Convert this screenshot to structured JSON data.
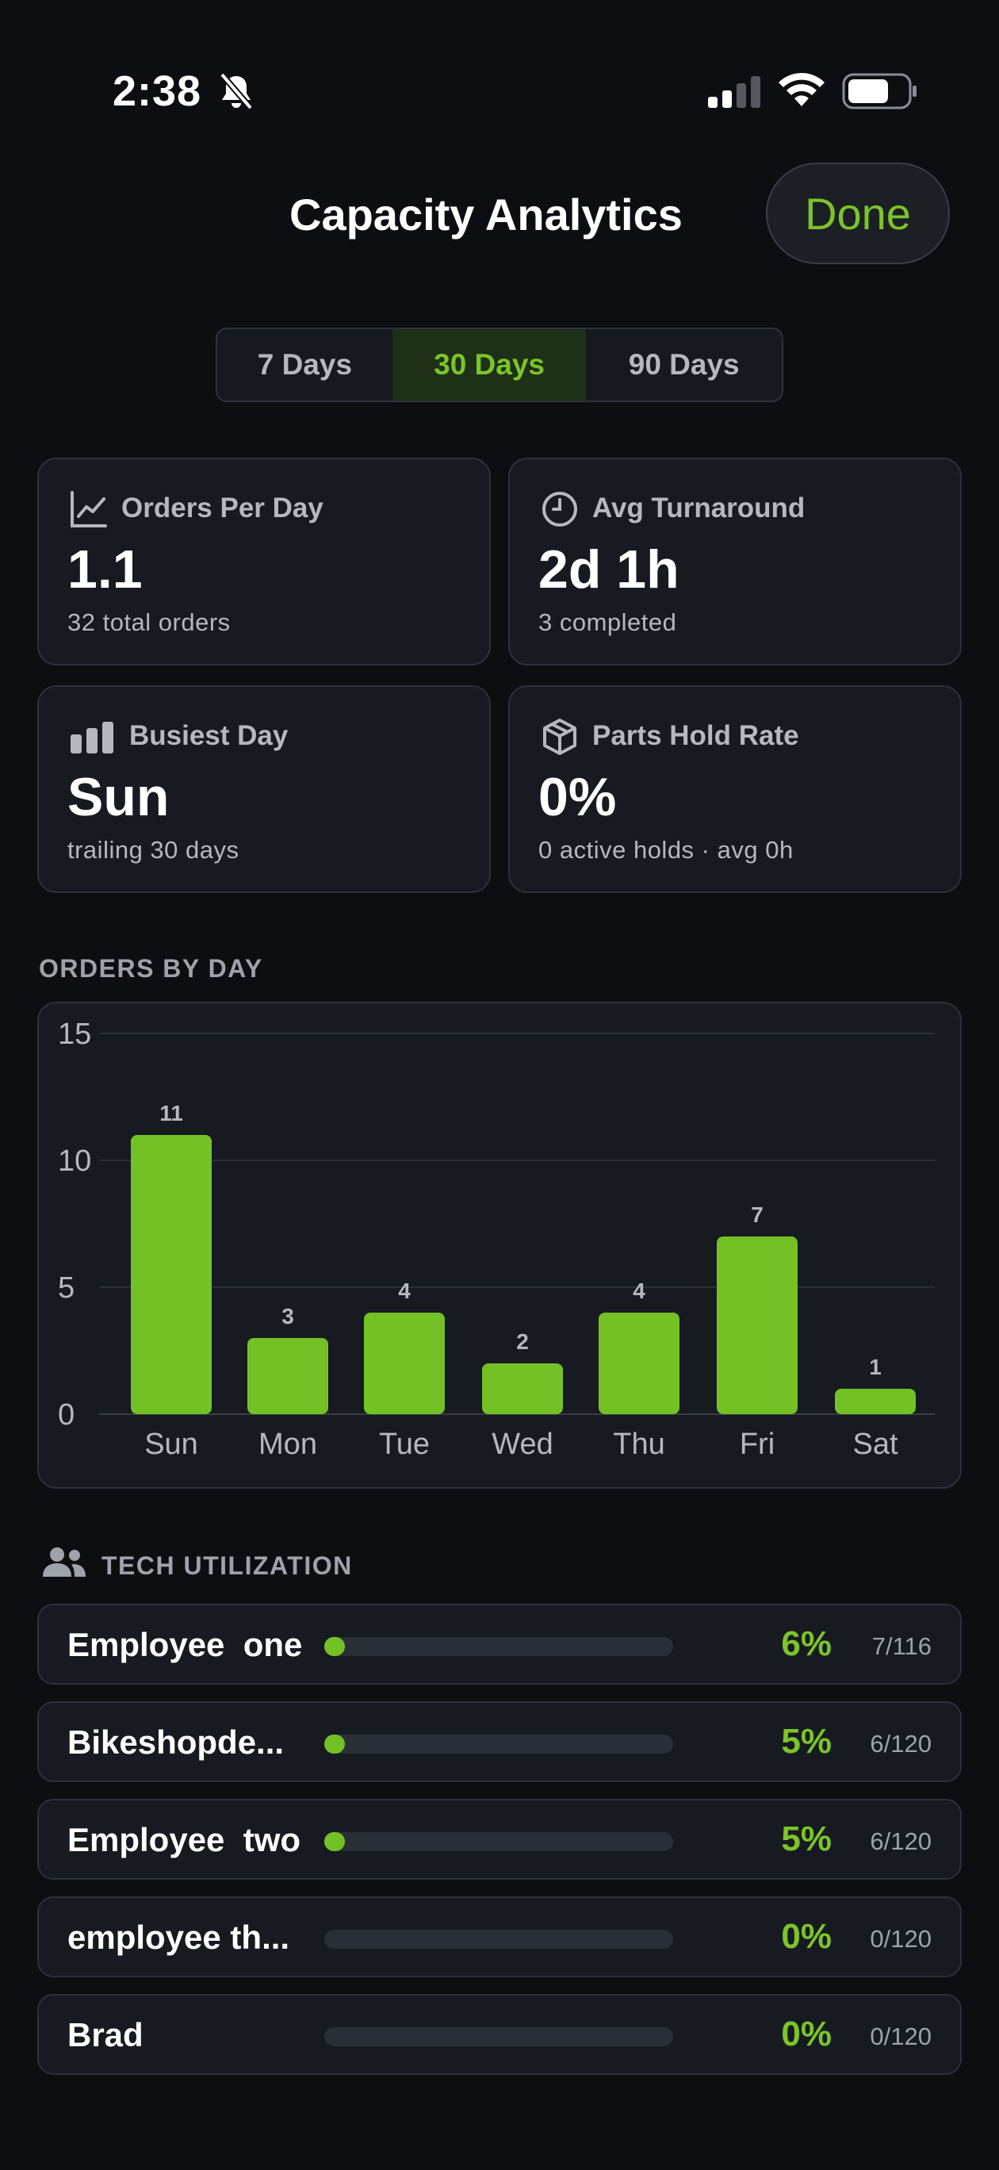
{
  "status_bar": {
    "time": "2:38"
  },
  "header": {
    "title": "Capacity Analytics",
    "done_label": "Done"
  },
  "range_tabs": [
    {
      "label": "7 Days",
      "selected": false
    },
    {
      "label": "30 Days",
      "selected": true
    },
    {
      "label": "90 Days",
      "selected": false
    }
  ],
  "metrics": [
    {
      "label": "Orders Per Day",
      "value": "1.1",
      "sub": "32 total orders",
      "icon": "trend-chart-icon"
    },
    {
      "label": "Avg Turnaround",
      "value": "2d 1h",
      "sub": "3 completed",
      "icon": "clock-icon"
    },
    {
      "label": "Busiest Day",
      "value": "Sun",
      "sub": "trailing 30 days",
      "icon": "bar-chart-icon"
    },
    {
      "label": "Parts Hold Rate",
      "value": "0%",
      "sub": "0 active holds · avg 0h",
      "icon": "box-icon"
    }
  ],
  "orders_section_label": "ORDERS BY DAY",
  "chart_data": {
    "type": "bar",
    "categories": [
      "Sun",
      "Mon",
      "Tue",
      "Wed",
      "Thu",
      "Fri",
      "Sat"
    ],
    "values": [
      11,
      3,
      4,
      2,
      4,
      7,
      1
    ],
    "ylim": [
      0,
      15
    ],
    "yticks": [
      0,
      5,
      10,
      15
    ],
    "grid": true,
    "bar_color": "#74c126"
  },
  "tech_section_label": "TECH UTILIZATION",
  "tech_utilization": [
    {
      "name": "Employee  one",
      "percent": "6%",
      "ratio": "7/116",
      "fill": 0.06
    },
    {
      "name": "Bikeshopde...",
      "percent": "5%",
      "ratio": "6/120",
      "fill": 0.05
    },
    {
      "name": "Employee  two",
      "percent": "5%",
      "ratio": "6/120",
      "fill": 0.05
    },
    {
      "name": "employee th...",
      "percent": "0%",
      "ratio": "0/120",
      "fill": 0
    },
    {
      "name": "Brad",
      "percent": "0%",
      "ratio": "0/120",
      "fill": 0
    }
  ],
  "colors": {
    "accent": "#7cc428",
    "background": "#0c0e12",
    "card": "#171b21"
  }
}
